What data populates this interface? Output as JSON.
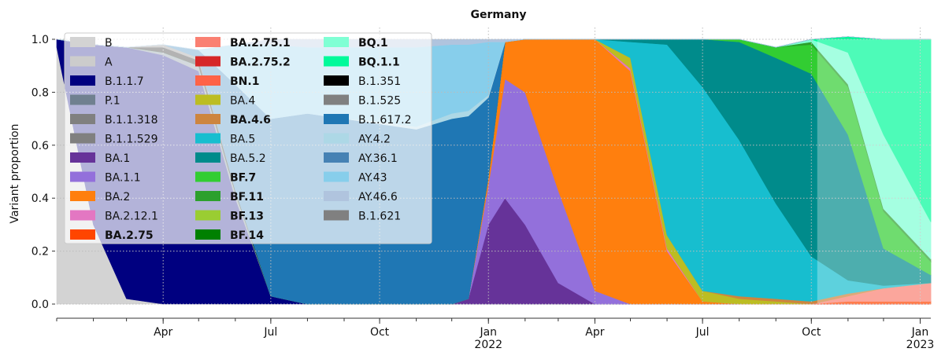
{
  "chart_data": {
    "type": "area",
    "title": "Germany",
    "xlabel": "",
    "ylabel": "Variant proportion",
    "ylim": [
      0,
      1
    ],
    "grid": true,
    "legend_position": "top-left",
    "x_tick_labels": [
      {
        "label": "Apr",
        "date": "2021-04-01"
      },
      {
        "label": "Jul",
        "date": "2021-07-01"
      },
      {
        "label": "Oct",
        "date": "2021-10-01"
      },
      {
        "label": "Jan\n2022",
        "date": "2022-01-01"
      },
      {
        "label": "Apr",
        "date": "2022-04-01"
      },
      {
        "label": "Jul",
        "date": "2022-07-01"
      },
      {
        "label": "Oct",
        "date": "2022-10-01"
      },
      {
        "label": "Jan\n2023",
        "date": "2023-01-01"
      }
    ],
    "y_ticks": [
      0.0,
      0.2,
      0.4,
      0.6,
      0.8,
      1.0
    ],
    "y_tick_labels": [
      "0.0",
      "0.2",
      "0.4",
      "0.6",
      "0.8",
      "1.0"
    ],
    "x_start": "2021-01-01",
    "x_end": "2023-01-10",
    "time_points": [
      "2021-01-01",
      "2021-02-01",
      "2021-03-01",
      "2021-04-01",
      "2021-05-01",
      "2021-06-01",
      "2021-07-01",
      "2021-08-01",
      "2021-09-01",
      "2021-10-01",
      "2021-11-01",
      "2021-12-01",
      "2021-12-15",
      "2022-01-01",
      "2022-01-15",
      "2022-02-01",
      "2022-03-01",
      "2022-04-01",
      "2022-05-01",
      "2022-06-01",
      "2022-07-01",
      "2022-08-01",
      "2022-09-01",
      "2022-10-01",
      "2022-11-01",
      "2022-12-01",
      "2023-01-10"
    ],
    "series": [
      {
        "name": "B",
        "bold": false,
        "color": "#d3d3d3",
        "values": [
          0.97,
          0.3,
          0.02,
          0,
          0,
          0,
          0,
          0,
          0,
          0,
          0,
          0,
          0,
          0,
          0,
          0,
          0,
          0,
          0,
          0,
          0,
          0,
          0,
          0,
          0,
          0,
          0
        ]
      },
      {
        "name": "A",
        "bold": false,
        "color": "#cccccc",
        "values": [
          0,
          0,
          0,
          0,
          0,
          0,
          0,
          0,
          0,
          0,
          0,
          0,
          0,
          0,
          0,
          0,
          0,
          0,
          0,
          0,
          0,
          0,
          0,
          0,
          0,
          0,
          0
        ]
      },
      {
        "name": "B.1.1.7",
        "bold": false,
        "color": "#000080",
        "values": [
          0.03,
          0.68,
          0.95,
          0.94,
          0.88,
          0.4,
          0.03,
          0,
          0,
          0,
          0,
          0,
          0,
          0,
          0,
          0,
          0,
          0,
          0,
          0,
          0,
          0,
          0,
          0,
          0,
          0,
          0
        ]
      },
      {
        "name": "P.1",
        "bold": false,
        "color": "#708090",
        "values": [
          0,
          0,
          0,
          0.01,
          0.02,
          0.02,
          0,
          0,
          0,
          0,
          0,
          0,
          0,
          0,
          0,
          0,
          0,
          0,
          0,
          0,
          0,
          0,
          0,
          0,
          0,
          0,
          0
        ]
      },
      {
        "name": "B.1.1.318",
        "bold": false,
        "color": "#808080",
        "values": [
          0,
          0,
          0,
          0,
          0,
          0,
          0,
          0,
          0,
          0,
          0,
          0,
          0,
          0,
          0,
          0,
          0,
          0,
          0,
          0,
          0,
          0,
          0,
          0,
          0,
          0,
          0
        ]
      },
      {
        "name": "B.1.1.529",
        "bold": false,
        "color": "#808080",
        "values": [
          0,
          0,
          0,
          0,
          0,
          0,
          0,
          0,
          0,
          0,
          0,
          0,
          0,
          0,
          0,
          0,
          0,
          0,
          0,
          0,
          0,
          0,
          0,
          0,
          0,
          0,
          0
        ]
      },
      {
        "name": "BA.1",
        "bold": false,
        "color": "#663399",
        "values": [
          0,
          0,
          0,
          0,
          0,
          0,
          0,
          0,
          0,
          0,
          0,
          0,
          0.02,
          0.3,
          0.4,
          0.3,
          0.08,
          0,
          0,
          0,
          0,
          0,
          0,
          0,
          0,
          0,
          0
        ]
      },
      {
        "name": "BA.1.1",
        "bold": false,
        "color": "#9370db",
        "values": [
          0,
          0,
          0,
          0,
          0,
          0,
          0,
          0,
          0,
          0,
          0,
          0,
          0,
          0.15,
          0.45,
          0.5,
          0.35,
          0.05,
          0,
          0,
          0,
          0,
          0,
          0,
          0,
          0,
          0
        ]
      },
      {
        "name": "BA.2",
        "bold": false,
        "color": "#ff7f0e",
        "values": [
          0,
          0,
          0,
          0,
          0,
          0,
          0,
          0,
          0,
          0,
          0,
          0,
          0,
          0.03,
          0.14,
          0.2,
          0.57,
          0.95,
          0.88,
          0.2,
          0.01,
          0,
          0,
          0,
          0,
          0,
          0
        ]
      },
      {
        "name": "BA.2.12.1",
        "bold": false,
        "color": "#e377c2",
        "values": [
          0,
          0,
          0,
          0,
          0,
          0,
          0,
          0,
          0,
          0,
          0,
          0,
          0,
          0,
          0,
          0,
          0,
          0,
          0.01,
          0.01,
          0,
          0,
          0,
          0,
          0,
          0,
          0
        ]
      },
      {
        "name": "BA.2.75",
        "bold": true,
        "color": "#ff4500",
        "values": [
          0,
          0,
          0,
          0,
          0,
          0,
          0,
          0,
          0,
          0,
          0,
          0,
          0,
          0,
          0,
          0,
          0,
          0,
          0,
          0,
          0,
          0,
          0,
          0,
          0.01,
          0.01,
          0.01
        ]
      },
      {
        "name": "BA.2.75.1",
        "bold": true,
        "color": "#fa8072",
        "values": [
          0,
          0,
          0,
          0,
          0,
          0,
          0,
          0,
          0,
          0,
          0,
          0,
          0,
          0,
          0,
          0,
          0,
          0,
          0,
          0,
          0,
          0,
          0,
          0,
          0.02,
          0.05,
          0.07
        ]
      },
      {
        "name": "BA.2.75.2",
        "bold": true,
        "color": "#d62728",
        "values": [
          0,
          0,
          0,
          0,
          0,
          0,
          0,
          0,
          0,
          0,
          0,
          0,
          0,
          0,
          0,
          0,
          0,
          0,
          0,
          0,
          0,
          0,
          0,
          0,
          0,
          0,
          0
        ]
      },
      {
        "name": "BN.1",
        "bold": true,
        "color": "#ff6347",
        "values": [
          0,
          0,
          0,
          0,
          0,
          0,
          0,
          0,
          0,
          0,
          0,
          0,
          0,
          0,
          0,
          0,
          0,
          0,
          0,
          0,
          0,
          0,
          0,
          0,
          0,
          0,
          0
        ]
      },
      {
        "name": "BA.4",
        "bold": false,
        "color": "#bcbd22",
        "values": [
          0,
          0,
          0,
          0,
          0,
          0,
          0,
          0,
          0,
          0,
          0,
          0,
          0,
          0,
          0,
          0,
          0,
          0,
          0.04,
          0.05,
          0.04,
          0.02,
          0.01,
          0,
          0,
          0,
          0
        ]
      },
      {
        "name": "BA.4.6",
        "bold": true,
        "color": "#cd853f",
        "values": [
          0,
          0,
          0,
          0,
          0,
          0,
          0,
          0,
          0,
          0,
          0,
          0,
          0,
          0,
          0,
          0,
          0,
          0,
          0,
          0,
          0,
          0.01,
          0.01,
          0.01,
          0.01,
          0,
          0
        ]
      },
      {
        "name": "BA.5",
        "bold": false,
        "color": "#17becf",
        "values": [
          0,
          0,
          0,
          0,
          0,
          0,
          0,
          0,
          0,
          0,
          0,
          0,
          0,
          0,
          0,
          0,
          0,
          0,
          0.06,
          0.72,
          0.77,
          0.59,
          0.36,
          0.17,
          0.05,
          0.01,
          0
        ]
      },
      {
        "name": "BA.5.2",
        "bold": false,
        "color": "#008b8b",
        "values": [
          0,
          0,
          0,
          0,
          0,
          0,
          0,
          0,
          0,
          0,
          0,
          0,
          0,
          0,
          0,
          0,
          0,
          0,
          0.01,
          0.02,
          0.18,
          0.37,
          0.55,
          0.69,
          0.55,
          0.14,
          0.03
        ]
      },
      {
        "name": "BF.7",
        "bold": true,
        "color": "#32cd32",
        "values": [
          0,
          0,
          0,
          0,
          0,
          0,
          0,
          0,
          0,
          0,
          0,
          0,
          0,
          0,
          0,
          0,
          0,
          0,
          0,
          0,
          0,
          0.01,
          0.04,
          0.11,
          0.18,
          0.14,
          0.05
        ]
      },
      {
        "name": "BF.11",
        "bold": true,
        "color": "#2ca02c",
        "values": [
          0,
          0,
          0,
          0,
          0,
          0,
          0,
          0,
          0,
          0,
          0,
          0,
          0,
          0,
          0,
          0,
          0,
          0,
          0,
          0,
          0,
          0,
          0,
          0.01,
          0.01,
          0.01,
          0.01
        ]
      },
      {
        "name": "BF.13",
        "bold": true,
        "color": "#9acd32",
        "values": [
          0,
          0,
          0,
          0,
          0,
          0,
          0,
          0,
          0,
          0,
          0,
          0,
          0,
          0,
          0,
          0,
          0,
          0,
          0,
          0,
          0,
          0,
          0,
          0,
          0,
          0,
          0
        ]
      },
      {
        "name": "BF.14",
        "bold": true,
        "color": "#008000",
        "values": [
          0,
          0,
          0,
          0,
          0,
          0,
          0,
          0,
          0,
          0,
          0,
          0,
          0,
          0,
          0,
          0,
          0,
          0,
          0,
          0,
          0,
          0,
          0,
          0,
          0,
          0,
          0
        ]
      },
      {
        "name": "BQ.1",
        "bold": true,
        "color": "#7fffd4",
        "values": [
          0,
          0,
          0,
          0,
          0,
          0,
          0,
          0,
          0,
          0,
          0,
          0,
          0,
          0,
          0,
          0,
          0,
          0,
          0,
          0,
          0,
          0,
          0,
          0.01,
          0.12,
          0.28,
          0.14
        ]
      },
      {
        "name": "BQ.1.1",
        "bold": true,
        "color": "#00fa9a",
        "values": [
          0,
          0,
          0,
          0,
          0,
          0,
          0,
          0,
          0,
          0,
          0,
          0,
          0,
          0,
          0,
          0,
          0,
          0,
          0,
          0,
          0,
          0,
          0,
          0,
          0.06,
          0.36,
          0.69
        ]
      },
      {
        "name": "B.1.351",
        "bold": false,
        "color": "#000000",
        "values": [
          0,
          0,
          0,
          0.02,
          0.02,
          0.01,
          0,
          0,
          0,
          0,
          0,
          0,
          0,
          0,
          0,
          0,
          0,
          0,
          0,
          0,
          0,
          0,
          0,
          0,
          0,
          0,
          0
        ]
      },
      {
        "name": "B.1.525",
        "bold": false,
        "color": "#808080",
        "values": [
          0,
          0,
          0,
          0.01,
          0.01,
          0,
          0,
          0,
          0,
          0,
          0,
          0,
          0,
          0,
          0,
          0,
          0,
          0,
          0,
          0,
          0,
          0,
          0,
          0,
          0,
          0,
          0
        ]
      },
      {
        "name": "B.1.617.2",
        "bold": false,
        "color": "#1f77b4",
        "values": [
          0,
          0,
          0,
          0,
          0.03,
          0.4,
          0.67,
          0.72,
          0.7,
          0.68,
          0.66,
          0.7,
          0.69,
          0.3,
          0,
          0,
          0,
          0,
          0,
          0,
          0,
          0,
          0,
          0,
          0,
          0,
          0
        ]
      },
      {
        "name": "AY.4.2",
        "bold": false,
        "color": "#add8e6",
        "values": [
          0,
          0,
          0,
          0,
          0,
          0,
          0,
          0,
          0,
          0.01,
          0.01,
          0.02,
          0.02,
          0.01,
          0,
          0,
          0,
          0,
          0,
          0,
          0,
          0,
          0,
          0,
          0,
          0,
          0
        ]
      },
      {
        "name": "AY.36.1",
        "bold": false,
        "color": "#4682b4",
        "values": [
          0,
          0,
          0,
          0,
          0,
          0,
          0,
          0,
          0,
          0,
          0,
          0,
          0,
          0,
          0,
          0,
          0,
          0,
          0,
          0,
          0,
          0,
          0,
          0,
          0,
          0,
          0
        ]
      },
      {
        "name": "AY.43",
        "bold": false,
        "color": "#87ceeb",
        "values": [
          0,
          0,
          0,
          0,
          0,
          0.15,
          0.28,
          0.25,
          0.27,
          0.28,
          0.3,
          0.26,
          0.25,
          0.2,
          0,
          0,
          0,
          0,
          0,
          0,
          0,
          0,
          0,
          0,
          0,
          0,
          0
        ]
      },
      {
        "name": "AY.46.6",
        "bold": false,
        "color": "#b0c4de",
        "values": [
          0,
          0,
          0,
          0,
          0,
          0,
          0.02,
          0.03,
          0.03,
          0.03,
          0.03,
          0.02,
          0.02,
          0.01,
          0.01,
          0,
          0,
          0,
          0,
          0,
          0,
          0,
          0,
          0,
          0,
          0,
          0
        ]
      },
      {
        "name": "B.1.621",
        "bold": false,
        "color": "#808080",
        "values": [
          0,
          0,
          0,
          0,
          0,
          0,
          0,
          0,
          0,
          0,
          0,
          0,
          0,
          0,
          0,
          0,
          0,
          0,
          0,
          0,
          0,
          0,
          0,
          0,
          0,
          0,
          0
        ]
      }
    ],
    "legend_order": [
      "B",
      "A",
      "B.1.1.7",
      "P.1",
      "B.1.1.318",
      "B.1.1.529",
      "BA.1",
      "BA.1.1",
      "BA.2",
      "BA.2.12.1",
      "BA.2.75",
      "BA.2.75.1",
      "BA.2.75.2",
      "BN.1",
      "BA.4",
      "BA.4.6",
      "BA.5",
      "BA.5.2",
      "BF.7",
      "BF.11",
      "BF.13",
      "BF.14",
      "BQ.1",
      "BQ.1.1",
      "B.1.351",
      "B.1.525",
      "B.1.617.2",
      "AY.4.2",
      "AY.36.1",
      "AY.43",
      "AY.46.6",
      "B.1.621"
    ],
    "forecast_start": "2022-10-06"
  }
}
